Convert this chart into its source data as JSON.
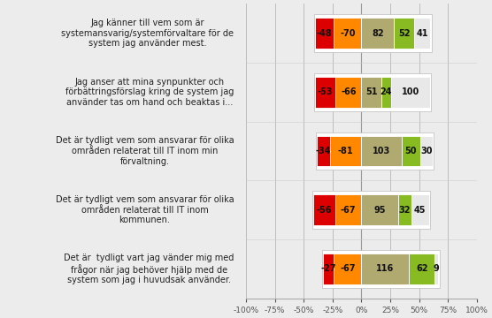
{
  "categories": [
    "Jag känner till vem som är\nsystemansvarig/systemförvaltare för de\nsystem jag använder mest.",
    "Jag anser att mina synpunkter och\nförbättringsförslag kring de system jag\nanvänder tas om hand och beaktas i...",
    "Det är tydligt vem som ansvarar för olika\nområden relaterat till IT inom min\nförvaltning.",
    "Det är tydligt vem som ansvarar för olika\nområden relaterat till IT inom\nkommunen.",
    "Det är  tydligt vart jag vänder mig med\nfrågor när jag behöver hjälp med de\nsystem som jag i huvudsak använder."
  ],
  "segments": [
    [
      -48,
      -70,
      82,
      52,
      41
    ],
    [
      -53,
      -66,
      51,
      24,
      100
    ],
    [
      -34,
      -81,
      103,
      50,
      30
    ],
    [
      -56,
      -67,
      95,
      32,
      45
    ],
    [
      -27,
      -67,
      116,
      62,
      9
    ]
  ],
  "colors": [
    "#dd0000",
    "#ff8800",
    "#b0aa70",
    "#88bb22",
    "#e8e8e8"
  ],
  "bar_height": 0.52,
  "xlim": [
    -100,
    100
  ],
  "xticks": [
    -100,
    -75,
    -50,
    -25,
    0,
    25,
    50,
    75,
    100
  ],
  "xticklabels": [
    "-100%",
    "-75%",
    "-50%",
    "-25%",
    "0%",
    "25%",
    "50%",
    "75%",
    "100%"
  ],
  "bg_color": "#ececec",
  "bar_bg_color": "#f5f5f5",
  "label_fontsize": 7,
  "category_fontsize": 7,
  "scale_divisor": 2.93
}
